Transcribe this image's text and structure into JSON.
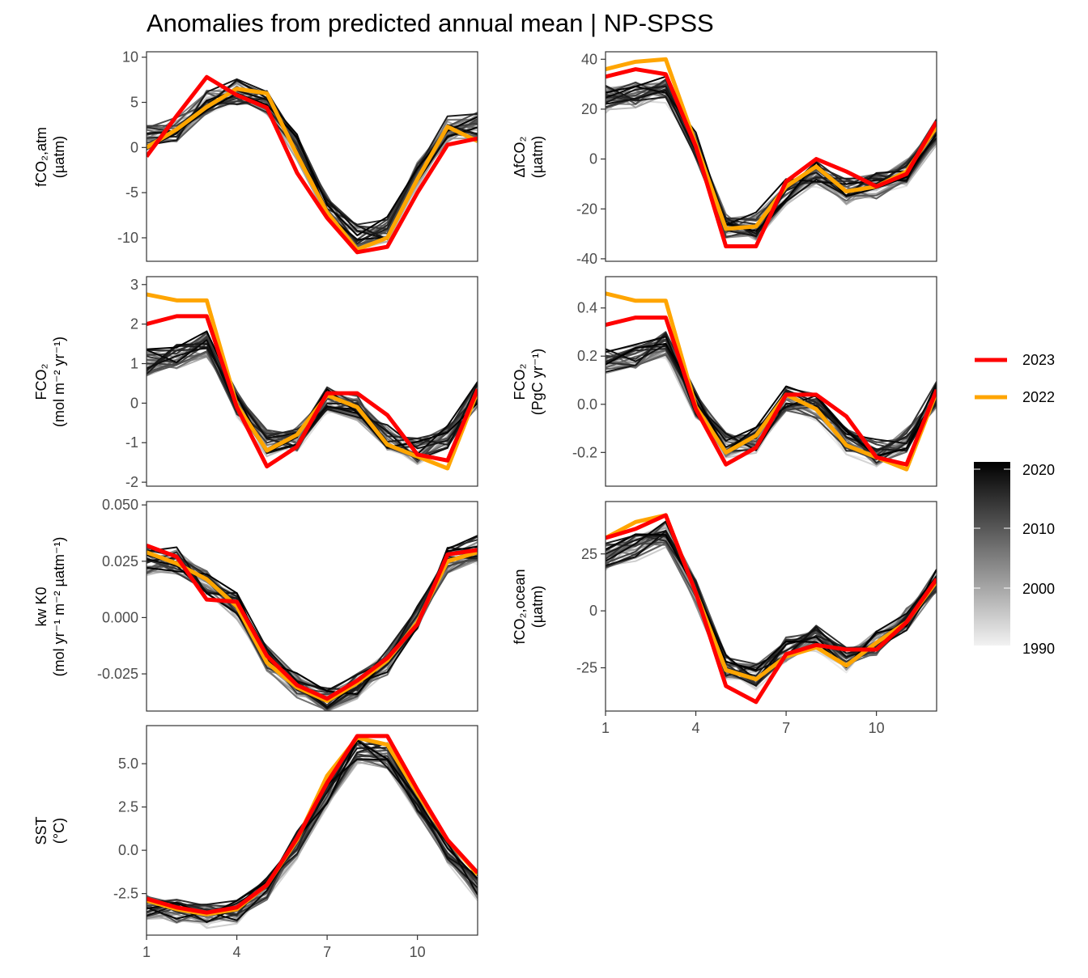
{
  "title": "Anomalies from predicted annual mean | NP-SPSS",
  "legend": {
    "highlight": [
      {
        "label": "2023",
        "color": "#ff0000"
      },
      {
        "label": "2022",
        "color": "#ffa500"
      }
    ],
    "colorbar": {
      "labels": [
        "2020",
        "2010",
        "2000",
        "1990"
      ],
      "range": [
        1990,
        2021
      ],
      "low_color": "#f2f2f2",
      "high_color": "#000000"
    }
  },
  "chart_data": [
    {
      "type": "line",
      "panel": "fCO2_atm",
      "ylabel_lines": [
        "fCO₂,atm",
        "(µatm)"
      ],
      "x": [
        1,
        2,
        3,
        4,
        5,
        6,
        7,
        8,
        9,
        10,
        11,
        12
      ],
      "xlim": [
        1,
        12
      ],
      "ylim": [
        -12.6,
        10.6
      ],
      "xticks": [],
      "yticks": [
        10,
        5,
        0,
        -5,
        -10
      ],
      "ytick_labels": [
        "10",
        "5",
        "0",
        "-5",
        "-10"
      ],
      "background_series_years": [
        1990,
        2021
      ],
      "background_base": [
        1.0,
        2.0,
        5.0,
        6.0,
        5.0,
        0.0,
        -6.5,
        -10.0,
        -9.0,
        -3.0,
        2.0,
        2.5
      ],
      "series": [
        {
          "name": "2023",
          "values": [
            -1.0,
            3.5,
            7.8,
            5.8,
            4.4,
            -2.8,
            -7.8,
            -11.6,
            -11.0,
            -5.0,
            0.3,
            1.0
          ]
        },
        {
          "name": "2022",
          "values": [
            0.0,
            2.0,
            4.5,
            6.5,
            6.0,
            -0.8,
            -7.2,
            -11.3,
            -10.0,
            -3.5,
            2.3,
            0.7
          ]
        }
      ]
    },
    {
      "type": "line",
      "panel": "dfCO2",
      "ylabel_lines": [
        "ΔfCO₂",
        "(µatm)"
      ],
      "x": [
        1,
        2,
        3,
        4,
        5,
        6,
        7,
        8,
        9,
        10,
        11,
        12
      ],
      "xlim": [
        1,
        12
      ],
      "ylim": [
        -41,
        43
      ],
      "xticks": [],
      "yticks": [
        40,
        20,
        0,
        -20,
        -40
      ],
      "ytick_labels": [
        "40",
        "20",
        "0",
        "-20",
        "-40"
      ],
      "background_series_years": [
        1990,
        2021
      ],
      "background_base": [
        24,
        26,
        28,
        5,
        -27,
        -27,
        -13,
        -6,
        -13,
        -11,
        -5,
        11
      ],
      "series": [
        {
          "name": "2023",
          "values": [
            33,
            36,
            34,
            5,
            -35,
            -35,
            -9,
            0,
            -5,
            -11,
            -6,
            15
          ]
        },
        {
          "name": "2022",
          "values": [
            36,
            39,
            40,
            6,
            -28,
            -27,
            -11,
            -3,
            -13,
            -11,
            -5,
            13
          ]
        }
      ]
    },
    {
      "type": "line",
      "panel": "FCO2_area",
      "ylabel_lines": [
        "FCO₂",
        "(mol m⁻² yr⁻¹)"
      ],
      "x": [
        1,
        2,
        3,
        4,
        5,
        6,
        7,
        8,
        9,
        10,
        11,
        12
      ],
      "xlim": [
        1,
        12
      ],
      "ylim": [
        -2.1,
        3.2
      ],
      "xticks": [],
      "yticks": [
        3,
        2,
        1,
        0,
        -1,
        -2
      ],
      "ytick_labels": [
        "3",
        "2",
        "1",
        "0",
        "-1",
        "-2"
      ],
      "background_series_years": [
        1990,
        2021
      ],
      "background_base": [
        1.0,
        1.2,
        1.5,
        0.0,
        -1.0,
        -0.9,
        0.1,
        -0.1,
        -0.9,
        -1.2,
        -0.9,
        0.2
      ],
      "series": [
        {
          "name": "2023",
          "values": [
            2.0,
            2.2,
            2.2,
            -0.1,
            -1.6,
            -1.1,
            0.25,
            0.25,
            -0.3,
            -1.3,
            -1.45,
            0.35
          ]
        },
        {
          "name": "2022",
          "values": [
            2.75,
            2.6,
            2.6,
            -0.05,
            -1.2,
            -0.8,
            0.2,
            -0.1,
            -1.05,
            -1.35,
            -1.65,
            0.3
          ]
        }
      ]
    },
    {
      "type": "line",
      "panel": "FCO2_total",
      "ylabel_lines": [
        "FCO₂",
        "(PgC yr⁻¹)"
      ],
      "x": [
        1,
        2,
        3,
        4,
        5,
        6,
        7,
        8,
        9,
        10,
        11,
        12
      ],
      "xlim": [
        1,
        12
      ],
      "ylim": [
        -0.34,
        0.53
      ],
      "xticks": [],
      "yticks": [
        0.4,
        0.2,
        0.0,
        -0.2
      ],
      "ytick_labels": [
        "0.4",
        "0.2",
        "0.0",
        "-0.2"
      ],
      "background_series_years": [
        1990,
        2021
      ],
      "background_base": [
        0.17,
        0.2,
        0.25,
        0.0,
        -0.17,
        -0.15,
        0.02,
        -0.01,
        -0.15,
        -0.2,
        -0.15,
        0.04
      ],
      "series": [
        {
          "name": "2023",
          "values": [
            0.33,
            0.36,
            0.36,
            -0.02,
            -0.25,
            -0.18,
            0.04,
            0.04,
            -0.05,
            -0.22,
            -0.25,
            0.06
          ]
        },
        {
          "name": "2022",
          "values": [
            0.46,
            0.43,
            0.43,
            -0.01,
            -0.2,
            -0.13,
            0.04,
            -0.02,
            -0.17,
            -0.22,
            -0.27,
            0.05
          ]
        }
      ]
    },
    {
      "type": "line",
      "panel": "kwK0",
      "ylabel_lines": [
        "kw K0",
        "(mol yr⁻¹ m⁻² µatm⁻¹)"
      ],
      "x": [
        1,
        2,
        3,
        4,
        5,
        6,
        7,
        8,
        9,
        10,
        11,
        12
      ],
      "xlim": [
        1,
        12
      ],
      "ylim": [
        -0.0415,
        0.0515
      ],
      "xticks": [],
      "yticks": [
        0.05,
        0.025,
        0.0,
        -0.025
      ],
      "ytick_labels": [
        "0.050",
        "0.025",
        "0.000",
        "-0.025"
      ],
      "background_series_years": [
        1990,
        2021
      ],
      "background_base": [
        0.025,
        0.025,
        0.015,
        0.005,
        -0.018,
        -0.03,
        -0.037,
        -0.03,
        -0.02,
        0.0,
        0.025,
        0.03
      ],
      "series": [
        {
          "name": "2023",
          "values": [
            0.032,
            0.027,
            0.008,
            0.007,
            -0.017,
            -0.03,
            -0.036,
            -0.028,
            -0.018,
            -0.003,
            0.028,
            0.03
          ]
        },
        {
          "name": "2022",
          "values": [
            0.029,
            0.024,
            0.017,
            0.005,
            -0.02,
            -0.031,
            -0.037,
            -0.029,
            -0.019,
            -0.002,
            0.025,
            0.029
          ]
        }
      ]
    },
    {
      "type": "line",
      "panel": "fCO2_ocean",
      "ylabel_lines": [
        "fCO₂,ocean",
        "(µatm)"
      ],
      "x": [
        1,
        2,
        3,
        4,
        5,
        6,
        7,
        8,
        9,
        10,
        11,
        12
      ],
      "xlim": [
        1,
        12
      ],
      "ylim": [
        -44,
        48
      ],
      "xticks": [
        1,
        4,
        7,
        10
      ],
      "xtick_labels": [
        "1",
        "4",
        "7",
        "10"
      ],
      "yticks": [
        25,
        0,
        -25
      ],
      "ytick_labels": [
        "25",
        "0",
        "-25"
      ],
      "background_series_years": [
        1990,
        2021
      ],
      "background_base": [
        24,
        28,
        34,
        8,
        -25,
        -29,
        -17,
        -12,
        -21,
        -14,
        -4,
        13
      ],
      "series": [
        {
          "name": "2023",
          "values": [
            32,
            36,
            42,
            8,
            -33,
            -40,
            -19,
            -15,
            -17,
            -17,
            -5,
            14
          ]
        },
        {
          "name": "2022",
          "values": [
            32,
            39,
            42,
            8,
            -26,
            -30,
            -20,
            -16,
            -24,
            -14,
            -5,
            13
          ]
        }
      ]
    },
    {
      "type": "line",
      "panel": "SST",
      "ylabel_lines": [
        "SST",
        "(°C)"
      ],
      "x": [
        1,
        2,
        3,
        4,
        5,
        6,
        7,
        8,
        9,
        10,
        11,
        12
      ],
      "xlim": [
        1,
        12
      ],
      "ylim": [
        -4.9,
        7.2
      ],
      "xticks": [
        1,
        4,
        7,
        10
      ],
      "xtick_labels": [
        "1",
        "4",
        "7",
        "10"
      ],
      "yticks": [
        5.0,
        2.5,
        0.0,
        -2.5
      ],
      "ytick_labels": [
        "5.0",
        "2.5",
        "0.0",
        "-2.5"
      ],
      "background_series_years": [
        1990,
        2021
      ],
      "background_base": [
        -3.2,
        -3.6,
        -3.8,
        -3.5,
        -2.2,
        0.3,
        3.2,
        5.8,
        5.4,
        2.8,
        0.0,
        -2.1
      ],
      "series": [
        {
          "name": "2023",
          "values": [
            -2.8,
            -3.3,
            -3.6,
            -3.3,
            -2.0,
            0.7,
            3.9,
            6.6,
            6.6,
            3.5,
            0.6,
            -1.3
          ]
        },
        {
          "name": "2022",
          "values": [
            -2.9,
            -3.4,
            -3.7,
            -3.4,
            -2.0,
            0.6,
            4.3,
            6.5,
            6.1,
            3.3,
            0.6,
            -1.4
          ]
        }
      ]
    }
  ]
}
